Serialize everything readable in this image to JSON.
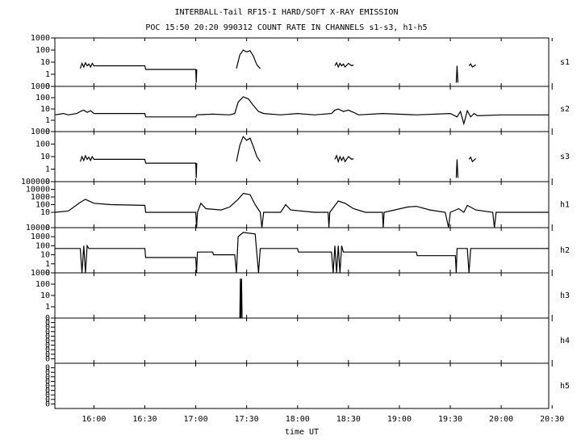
{
  "chart_data": {
    "type": "line",
    "log_scale": true,
    "color": "#000000",
    "title": "INTERBALL-Tail RF15-I HARD/SOFT X-RAY EMISSION",
    "subtitle": "POC 15:50 20:20 990312  COUNT RATE IN CHANNELS s1-s3, h1-h5",
    "xlabel": "time UT",
    "xlim": [
      937,
      1228
    ],
    "xticks": [
      {
        "value": 960,
        "label": "16:00"
      },
      {
        "value": 990,
        "label": "16:30"
      },
      {
        "value": 1020,
        "label": "17:00"
      },
      {
        "value": 1050,
        "label": "17:30"
      },
      {
        "value": 1080,
        "label": "18:00"
      },
      {
        "value": 1110,
        "label": "18:30"
      },
      {
        "value": 1140,
        "label": "19:00"
      },
      {
        "value": 1170,
        "label": "19:30"
      },
      {
        "value": 1200,
        "label": "20:00"
      },
      {
        "value": 1230,
        "label": "20:30"
      }
    ],
    "panels": [
      {
        "label": "s1",
        "ylim": [
          0.1,
          1000
        ],
        "yticks": [
          1000,
          100,
          10,
          1,
          {
            "value": 0.1,
            "label": "0"
          }
        ],
        "x": [
          952,
          953,
          954,
          955,
          956,
          957,
          958,
          959,
          960,
          990,
          990.5,
          1020,
          1020.3,
          1020.6,
          1043,
          1044,
          1046,
          1048,
          1050,
          1052,
          1054,
          1056,
          1058,
          1058.5,
          1102,
          1103,
          1104,
          1105,
          1106,
          1107,
          1108,
          1110,
          1112,
          1113,
          1173,
          1173.5,
          1174,
          1174.5,
          1180,
          1181,
          1182,
          1183,
          1185
        ],
        "values": [
          3,
          8,
          4,
          9,
          5,
          7,
          4,
          8,
          5,
          5,
          2.5,
          2.5,
          0.2,
          2.5,
          null,
          3,
          40,
          100,
          70,
          90,
          30,
          6,
          3,
          null,
          5,
          9,
          4,
          8,
          5,
          7,
          4,
          8,
          5,
          6,
          null,
          0.2,
          5,
          0.2,
          null,
          5,
          7,
          4,
          6
        ]
      },
      {
        "label": "s2",
        "ylim": [
          0.1,
          1000
        ],
        "yticks": [
          1000,
          100,
          10,
          1,
          {
            "value": 0.1,
            "label": "0"
          }
        ],
        "x": [
          937,
          942,
          945,
          950,
          952,
          954,
          956,
          958,
          960,
          990,
          990.5,
          1020,
          1020.5,
          1030,
          1040,
          1043,
          1045,
          1048,
          1051,
          1054,
          1057,
          1060,
          1070,
          1080,
          1090,
          1100,
          1102,
          1104,
          1107,
          1110,
          1113,
          1116,
          1130,
          1150,
          1170,
          1174,
          1176,
          1178,
          1180,
          1182,
          1184,
          1186,
          1200,
          1215,
          1228
        ],
        "values": [
          3,
          4,
          3,
          4,
          6,
          8,
          5,
          7,
          4,
          4,
          2,
          2,
          3,
          3.5,
          3,
          4,
          40,
          120,
          80,
          20,
          6,
          4,
          3,
          4,
          3,
          4,
          8,
          10,
          6,
          8,
          5,
          3,
          4,
          3,
          4,
          2,
          6,
          0.5,
          7,
          2,
          4,
          2.5,
          3,
          3,
          3
        ]
      },
      {
        "label": "s3",
        "ylim": [
          0.1,
          1000
        ],
        "yticks": [
          1000,
          100,
          10,
          1,
          {
            "value": 0.1,
            "label": "0"
          }
        ],
        "x": [
          952,
          953,
          954,
          955,
          956,
          957,
          958,
          959,
          960,
          990,
          990.5,
          1020,
          1020.3,
          1020.6,
          1043,
          1044,
          1046,
          1048,
          1050,
          1052,
          1054,
          1056,
          1058,
          1058.5,
          1102,
          1103,
          1104,
          1105,
          1106,
          1107,
          1108,
          1110,
          1112,
          1113,
          1173,
          1173.5,
          1174,
          1174.5,
          1180,
          1181,
          1182,
          1183,
          1185
        ],
        "values": [
          4,
          10,
          5,
          12,
          6,
          9,
          5,
          10,
          6,
          6,
          3,
          3,
          0.2,
          3,
          null,
          4,
          80,
          400,
          200,
          300,
          60,
          10,
          4,
          null,
          6,
          12,
          4,
          10,
          5,
          9,
          4,
          10,
          6,
          7,
          null,
          0.2,
          6,
          0.2,
          null,
          6,
          9,
          4,
          7
        ]
      },
      {
        "label": "h1",
        "ylim": [
          0.1,
          100000
        ],
        "yticks": [
          100000,
          10000,
          1000,
          100,
          10,
          {
            "value": 0.1,
            "label": "0"
          }
        ],
        "x": [
          937,
          945,
          952,
          955,
          960,
          970,
          990,
          990.5,
          1020,
          1020.5,
          1021,
          1023,
          1026,
          1035,
          1040,
          1045,
          1048,
          1052,
          1055,
          1058,
          1059,
          1060,
          1070,
          1073,
          1076,
          1090,
          1098,
          1098.5,
          1099,
          1104,
          1108,
          1113,
          1120,
          1130,
          1130.5,
          1131,
          1145,
          1150,
          1158,
          1167,
          1169,
          1170,
          1175,
          1178,
          1180,
          1185,
          1195,
          1196,
          1197,
          1228
        ],
        "values": [
          10,
          15,
          200,
          500,
          150,
          100,
          80,
          10,
          10,
          0.1,
          10,
          150,
          30,
          20,
          50,
          500,
          3000,
          2000,
          100,
          10,
          0.1,
          10,
          10,
          100,
          20,
          10,
          10,
          0.1,
          10,
          300,
          150,
          30,
          10,
          10,
          0.1,
          10,
          50,
          60,
          20,
          10,
          0.1,
          10,
          30,
          10,
          80,
          20,
          10,
          0.1,
          10,
          10
        ]
      },
      {
        "label": "h2",
        "ylim": [
          0.1,
          10000
        ],
        "yticks": [
          10000,
          1000,
          100,
          10,
          1,
          {
            "value": 0.1,
            "label": "0"
          }
        ],
        "x": [
          937,
          952,
          953,
          954,
          955,
          956,
          957,
          990,
          990.5,
          1020,
          1020.5,
          1021,
          1030,
          1030.5,
          1043,
          1044,
          1045,
          1048,
          1055,
          1057,
          1058,
          1080,
          1080.5,
          1100,
          1101,
          1102,
          1103,
          1104,
          1105,
          1106,
          1107,
          1150,
          1150.5,
          1173,
          1173.5,
          1174,
          1180,
          1181,
          1182,
          1228
        ],
        "values": [
          50,
          50,
          0.1,
          100,
          0.1,
          100,
          50,
          50,
          5,
          5,
          0.1,
          20,
          20,
          10,
          10,
          0.1,
          1000,
          3000,
          2000,
          0.1,
          50,
          50,
          20,
          20,
          0.1,
          100,
          0.1,
          100,
          0.1,
          100,
          20,
          20,
          8,
          8,
          0.1,
          50,
          50,
          0.1,
          50,
          50
        ]
      },
      {
        "label": "h3",
        "ylim": [
          0.1,
          1000
        ],
        "yticks": [
          1000,
          100,
          10,
          1,
          {
            "value": 0.1,
            "label": "0"
          }
        ],
        "x": [
          1046,
          1046.3,
          1046.6,
          1047,
          1047.3
        ],
        "values": [
          0.1,
          300,
          0.1,
          300,
          0.1
        ]
      },
      {
        "label": "h4",
        "ylim": [
          1e-10,
          1
        ],
        "yticks": [
          {
            "value": 0.1,
            "label": "0"
          },
          {
            "value": 0.01,
            "label": "0"
          },
          {
            "value": 0.001,
            "label": "0"
          },
          {
            "value": 0.0001,
            "label": "0"
          },
          {
            "value": 1e-05,
            "label": "0"
          },
          {
            "value": 1e-06,
            "label": "0"
          },
          {
            "value": 1e-07,
            "label": "0"
          },
          {
            "value": 1e-08,
            "label": "0"
          },
          {
            "value": 1e-09,
            "label": "0"
          }
        ],
        "x": [],
        "values": []
      },
      {
        "label": "h5",
        "ylim": [
          1e-10,
          1
        ],
        "yticks": [
          {
            "value": 0.1,
            "label": "0"
          },
          {
            "value": 0.01,
            "label": "0"
          },
          {
            "value": 0.001,
            "label": "0"
          },
          {
            "value": 0.0001,
            "label": "0"
          },
          {
            "value": 1e-05,
            "label": "0"
          },
          {
            "value": 1e-06,
            "label": "0"
          },
          {
            "value": 1e-07,
            "label": "0"
          },
          {
            "value": 1e-08,
            "label": "0"
          },
          {
            "value": 1e-09,
            "label": "0"
          }
        ],
        "x": [],
        "values": []
      }
    ]
  }
}
